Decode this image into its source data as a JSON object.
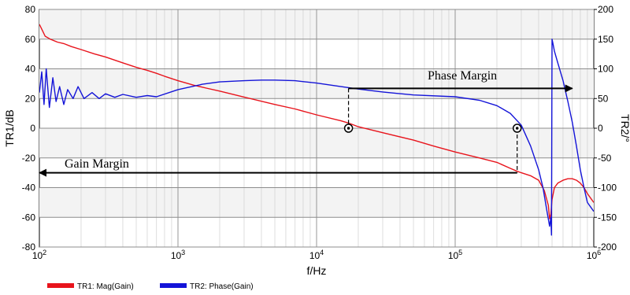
{
  "chart_data": {
    "type": "line",
    "x_scale": "log",
    "xlim": [
      100,
      1000000
    ],
    "xlabel": "f/Hz",
    "x_ticks": [
      {
        "base": "10",
        "exp": "2"
      },
      {
        "base": "10",
        "exp": "3"
      },
      {
        "base": "10",
        "exp": "4"
      },
      {
        "base": "10",
        "exp": "5"
      },
      {
        "base": "10",
        "exp": "6"
      }
    ],
    "y_left": {
      "label": "TR1/dB",
      "lim": [
        -80,
        80
      ],
      "ticks": [
        "-80",
        "-60",
        "-40",
        "-20",
        "0",
        "20",
        "40",
        "60",
        "80"
      ]
    },
    "y_right": {
      "label": "TR2/°",
      "lim": [
        -200,
        200
      ],
      "ticks": [
        "-200",
        "-150",
        "-100",
        "-50",
        "0",
        "50",
        "100",
        "150",
        "200"
      ]
    },
    "grid": true,
    "legend_position": "bottom-left",
    "series": [
      {
        "name": "TR1: Mag(Gain)",
        "axis": "left",
        "color": "#e8141c",
        "x": [
          100,
          105,
          110,
          120,
          135,
          150,
          170,
          200,
          250,
          300,
          400,
          500,
          600,
          700,
          800,
          1000,
          1300,
          1600,
          2000,
          3000,
          5000,
          7000,
          10000,
          15000,
          17000,
          20000,
          30000,
          50000,
          70000,
          100000,
          150000,
          200000,
          250000,
          280000,
          300000,
          350000,
          400000,
          440000,
          470000,
          480000,
          490000,
          500000,
          520000,
          550000,
          600000,
          650000,
          700000,
          750000,
          800000,
          850000,
          900000,
          1000000
        ],
        "values": [
          70,
          66,
          62,
          60,
          58,
          57,
          55,
          53,
          50,
          48,
          44,
          41,
          39,
          37,
          35,
          32,
          29,
          27,
          25,
          21,
          16,
          13,
          9,
          5,
          3.5,
          1,
          -3,
          -8,
          -12,
          -16,
          -20,
          -23,
          -27,
          -29,
          -30,
          -32,
          -35,
          -42,
          -52,
          -61,
          -58,
          -48,
          -40,
          -37,
          -35,
          -34,
          -34,
          -35,
          -37,
          -40,
          -44,
          -50
        ]
      },
      {
        "name": "TR2: Phase(Gain)",
        "axis": "right",
        "color": "#1414d8",
        "x": [
          100,
          104,
          108,
          112,
          118,
          125,
          132,
          140,
          150,
          160,
          175,
          190,
          210,
          240,
          270,
          300,
          350,
          400,
          500,
          600,
          700,
          1000,
          1500,
          2000,
          3000,
          4000,
          5000,
          7000,
          10000,
          15000,
          20000,
          30000,
          50000,
          100000,
          150000,
          200000,
          250000,
          300000,
          350000,
          400000,
          430000,
          460000,
          480000,
          490000,
          495000,
          500000,
          505000,
          520000,
          550000,
          600000,
          650000,
          700000,
          750000,
          800000,
          850000,
          900000,
          1000000
        ],
        "values": [
          60,
          95,
          40,
          100,
          35,
          85,
          45,
          70,
          40,
          65,
          50,
          70,
          50,
          60,
          50,
          58,
          52,
          57,
          52,
          55,
          53,
          65,
          74,
          78,
          80,
          81,
          81,
          80,
          76,
          70,
          66,
          61,
          56,
          53,
          47,
          38,
          25,
          5,
          -30,
          -70,
          -100,
          -140,
          -165,
          -150,
          -180,
          150,
          145,
          130,
          110,
          80,
          45,
          10,
          -30,
          -70,
          -100,
          -125,
          -140
        ]
      }
    ],
    "annotations": [
      {
        "text": "Phase Margin",
        "arrow_axis": "right",
        "arrow_value": 67,
        "x_from": 17000,
        "x_to": 700000
      },
      {
        "text": "Gain Margin",
        "arrow_axis": "left",
        "arrow_value": -30,
        "x_from": 280000,
        "x_to": 100
      }
    ],
    "markers": [
      {
        "x": 17000,
        "y_left": 0
      },
      {
        "x": 280000,
        "y_left": 0
      }
    ]
  }
}
